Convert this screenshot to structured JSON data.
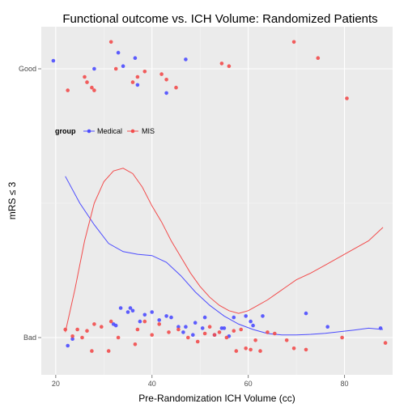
{
  "chart_data": {
    "type": "scatter",
    "title": "Functional outcome vs. ICH Volume: Randomized Patients",
    "xlabel": "Pre-Randomization ICH Volume (cc)",
    "ylabel": "mRS ≤ 3",
    "xlim": [
      17,
      90
    ],
    "x_ticks": [
      20,
      40,
      60,
      80
    ],
    "x_tick_labels": [
      "20",
      "40",
      "60",
      "80"
    ],
    "y_categories": [
      "Bad",
      "Good"
    ],
    "y_tick_labels": [
      "Bad",
      "Good"
    ],
    "grid": true,
    "legend": {
      "title": "group",
      "placement": "top-left, inside plot",
      "entries": [
        "Medical",
        "MIS"
      ]
    },
    "colors": {
      "panel_background": "#ebebeb",
      "grid_major": "#ffffff",
      "Medical": "#4c4cff",
      "MIS": "#f24c4c"
    },
    "series": [
      {
        "name": "Medical",
        "color": "#4c4cff",
        "points_good": [
          [
            19.5,
            1.03
          ],
          [
            28,
            1.0
          ],
          [
            33,
            1.06
          ],
          [
            36.5,
            1.04
          ],
          [
            37,
            0.94
          ],
          [
            43,
            0.91
          ],
          [
            47,
            1.035
          ],
          [
            34,
            1.01
          ]
        ],
        "points_bad": [
          [
            22.5,
            -0.03
          ],
          [
            23.5,
            -0.005
          ],
          [
            32,
            0.05
          ],
          [
            32.5,
            0.045
          ],
          [
            33.5,
            0.11
          ],
          [
            35,
            0.095
          ],
          [
            35.5,
            0.11
          ],
          [
            36,
            0.1
          ],
          [
            38.5,
            0.085
          ],
          [
            37.5,
            0.06
          ],
          [
            40,
            0.095
          ],
          [
            41.5,
            0.065
          ],
          [
            43,
            0.08
          ],
          [
            44,
            0.075
          ],
          [
            45.5,
            0.04
          ],
          [
            46.5,
            0.02
          ],
          [
            47,
            0.04
          ],
          [
            48.5,
            0.01
          ],
          [
            49,
            0.055
          ],
          [
            50.5,
            0.035
          ],
          [
            51,
            0.075
          ],
          [
            53,
            0.01
          ],
          [
            54.5,
            0.035
          ],
          [
            55,
            0.035
          ],
          [
            56,
            0.005
          ],
          [
            57,
            0.075
          ],
          [
            59.5,
            0.08
          ],
          [
            60.5,
            0.06
          ],
          [
            61,
            0.045
          ],
          [
            63,
            0.08
          ],
          [
            72,
            0.09
          ],
          [
            76.5,
            0.04
          ],
          [
            87.5,
            0.035
          ]
        ],
        "smooth_x": [
          22,
          25,
          28,
          31,
          34,
          37,
          40,
          43,
          46,
          49,
          52,
          55,
          58,
          61,
          64,
          67,
          70,
          73,
          76,
          79,
          82,
          85,
          88
        ],
        "smooth_y": [
          0.6,
          0.5,
          0.42,
          0.35,
          0.32,
          0.31,
          0.305,
          0.28,
          0.23,
          0.17,
          0.12,
          0.08,
          0.05,
          0.03,
          0.015,
          0.01,
          0.01,
          0.012,
          0.016,
          0.022,
          0.028,
          0.035,
          0.03
        ]
      },
      {
        "name": "MIS",
        "color": "#f24c4c",
        "points_good": [
          [
            22.5,
            0.92
          ],
          [
            26,
            0.97
          ],
          [
            26.5,
            0.95
          ],
          [
            27.5,
            0.93
          ],
          [
            28,
            0.92
          ],
          [
            31.5,
            1.1
          ],
          [
            32.5,
            1.0
          ],
          [
            36,
            0.95
          ],
          [
            37,
            0.97
          ],
          [
            38.5,
            0.99
          ],
          [
            42,
            0.98
          ],
          [
            43,
            0.96
          ],
          [
            45,
            0.93
          ],
          [
            54.5,
            1.02
          ],
          [
            56,
            1.01
          ],
          [
            69.5,
            1.1
          ],
          [
            74.5,
            1.04
          ],
          [
            80.5,
            0.89
          ]
        ],
        "points_bad": [
          [
            22,
            0.03
          ],
          [
            23.5,
            0.005
          ],
          [
            24.5,
            0.03
          ],
          [
            25.5,
            0.0
          ],
          [
            26.5,
            0.025
          ],
          [
            27.5,
            -0.05
          ],
          [
            28,
            0.05
          ],
          [
            29.5,
            0.04
          ],
          [
            31,
            -0.05
          ],
          [
            31.5,
            0.06
          ],
          [
            33,
            0.0
          ],
          [
            36.5,
            -0.025
          ],
          [
            37,
            0.03
          ],
          [
            38.5,
            0.06
          ],
          [
            40,
            0.01
          ],
          [
            41.5,
            0.05
          ],
          [
            43.5,
            0.02
          ],
          [
            45.5,
            0.03
          ],
          [
            47.5,
            0.0
          ],
          [
            49.5,
            -0.015
          ],
          [
            51,
            0.015
          ],
          [
            52,
            0.04
          ],
          [
            53,
            0.01
          ],
          [
            54,
            0.02
          ],
          [
            55.5,
            0.0
          ],
          [
            57,
            0.025
          ],
          [
            57.5,
            -0.05
          ],
          [
            58.5,
            0.03
          ],
          [
            59.5,
            -0.04
          ],
          [
            60.5,
            -0.045
          ],
          [
            61.5,
            -0.01
          ],
          [
            62.5,
            -0.05
          ],
          [
            64,
            0.02
          ],
          [
            65.5,
            0.015
          ],
          [
            68,
            -0.01
          ],
          [
            69.5,
            -0.04
          ],
          [
            72,
            -0.045
          ],
          [
            79.5,
            0.0
          ],
          [
            88.5,
            -0.02
          ]
        ],
        "smooth_x": [
          22,
          24,
          26,
          28,
          30,
          32,
          34,
          36,
          38,
          40,
          42,
          44,
          46,
          48,
          50,
          52,
          54,
          56,
          58,
          60,
          62,
          64,
          66,
          68,
          70,
          73,
          76,
          79,
          82,
          85,
          88
        ],
        "smooth_y": [
          0.02,
          0.18,
          0.36,
          0.5,
          0.58,
          0.62,
          0.63,
          0.61,
          0.56,
          0.49,
          0.43,
          0.36,
          0.3,
          0.24,
          0.19,
          0.15,
          0.12,
          0.1,
          0.09,
          0.1,
          0.12,
          0.14,
          0.165,
          0.19,
          0.215,
          0.24,
          0.27,
          0.3,
          0.33,
          0.36,
          0.41
        ]
      }
    ]
  }
}
